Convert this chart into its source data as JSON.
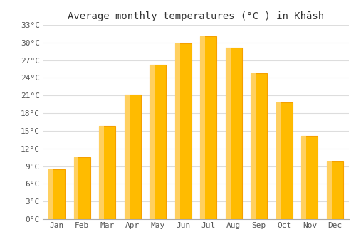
{
  "title": "Average monthly temperatures (°C ) in Khāsh",
  "months": [
    "Jan",
    "Feb",
    "Mar",
    "Apr",
    "May",
    "Jun",
    "Jul",
    "Aug",
    "Sep",
    "Oct",
    "Nov",
    "Dec"
  ],
  "values": [
    8.5,
    10.5,
    15.8,
    21.2,
    26.2,
    29.8,
    31.1,
    29.1,
    24.8,
    19.8,
    14.2,
    9.8
  ],
  "bar_color_main": "#FFBB00",
  "bar_color_left": "#FFD060",
  "bar_color_right": "#F5A000",
  "ylim": [
    0,
    33
  ],
  "yticks": [
    0,
    3,
    6,
    9,
    12,
    15,
    18,
    21,
    24,
    27,
    30,
    33
  ],
  "ytick_labels": [
    "0°C",
    "3°C",
    "6°C",
    "9°C",
    "12°C",
    "15°C",
    "18°C",
    "21°C",
    "24°C",
    "27°C",
    "30°C",
    "33°C"
  ],
  "background_color": "#FFFFFF",
  "grid_color": "#DDDDDD",
  "title_fontsize": 10,
  "tick_fontsize": 8,
  "font_family": "monospace"
}
